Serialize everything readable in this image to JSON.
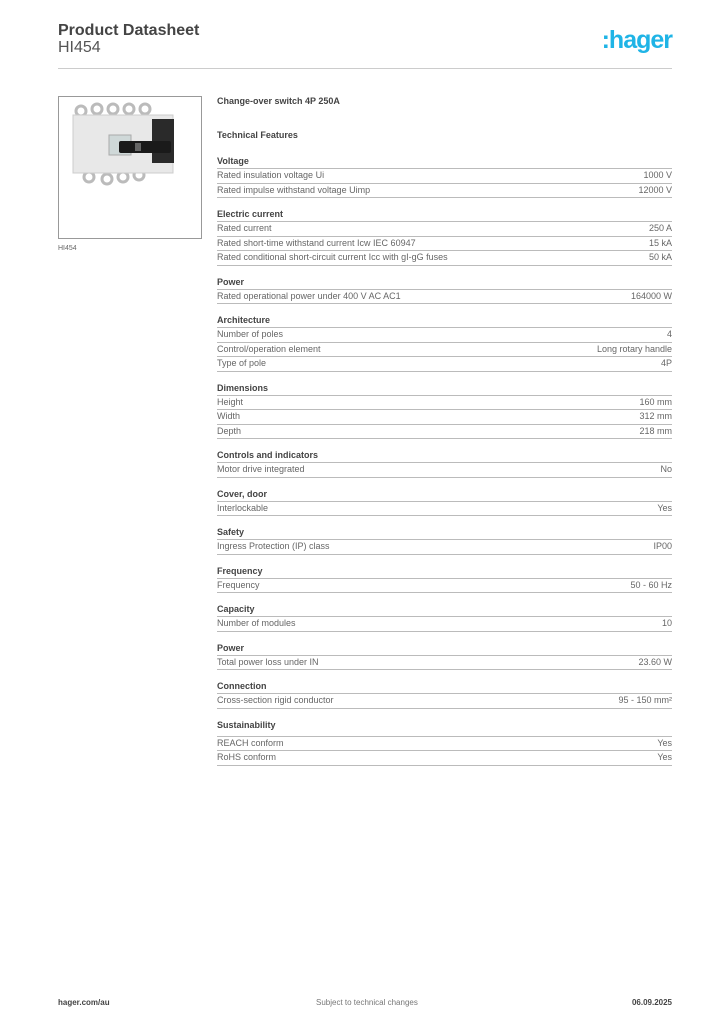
{
  "header": {
    "title": "Product Datasheet",
    "subtitle": "HI454",
    "logo": ":hager",
    "logo_color": "#1fb4e6"
  },
  "product": {
    "image_caption": "HI454",
    "name": "Change-over switch 4P 250A",
    "features_heading": "Technical Features"
  },
  "sections": [
    {
      "title": "Voltage",
      "rows": [
        [
          "Rated insulation voltage Ui",
          "1000 V"
        ],
        [
          "Rated impulse withstand voltage Uimp",
          "12000 V"
        ]
      ]
    },
    {
      "title": "Electric current",
      "rows": [
        [
          "Rated current",
          "250 A"
        ],
        [
          "Rated short-time withstand current Icw IEC 60947",
          "15 kA"
        ],
        [
          "Rated conditional short-circuit current Icc with gI-gG fuses",
          "50 kA"
        ]
      ]
    },
    {
      "title": "Power",
      "rows": [
        [
          "Rated operational power under 400 V AC AC1",
          "164000 W"
        ]
      ]
    },
    {
      "title": "Architecture",
      "rows": [
        [
          "Number of poles",
          "4"
        ],
        [
          "Control/operation element",
          "Long rotary handle"
        ],
        [
          "Type of pole",
          "4P"
        ]
      ]
    },
    {
      "title": "Dimensions",
      "rows": [
        [
          "Height",
          "160 mm"
        ],
        [
          "Width",
          "312 mm"
        ],
        [
          "Depth",
          "218 mm"
        ]
      ]
    },
    {
      "title": "Controls and indicators",
      "rows": [
        [
          "Motor drive integrated",
          "No"
        ]
      ]
    },
    {
      "title": "Cover, door",
      "rows": [
        [
          "Interlockable",
          "Yes"
        ]
      ]
    },
    {
      "title": "Safety",
      "rows": [
        [
          "Ingress Protection (IP) class",
          "IP00"
        ]
      ]
    },
    {
      "title": "Frequency",
      "rows": [
        [
          "Frequency",
          "50 - 60 Hz"
        ]
      ]
    },
    {
      "title": "Capacity",
      "rows": [
        [
          "Number of modules",
          "10"
        ]
      ]
    },
    {
      "title": "Power",
      "rows": [
        [
          "Total power loss under IN",
          "23.60 W"
        ]
      ]
    },
    {
      "title": "Connection",
      "rows": [
        [
          "Cross-section rigid conductor",
          "95 - 150 mm²"
        ]
      ]
    },
    {
      "title": "Sustainability",
      "rows": [
        [
          "REACH conform",
          "Yes"
        ],
        [
          "RoHS conform",
          "Yes"
        ]
      ]
    }
  ],
  "footer": {
    "left": "hager.com/au",
    "center": "Subject to technical changes",
    "right": "06.09.2025"
  }
}
